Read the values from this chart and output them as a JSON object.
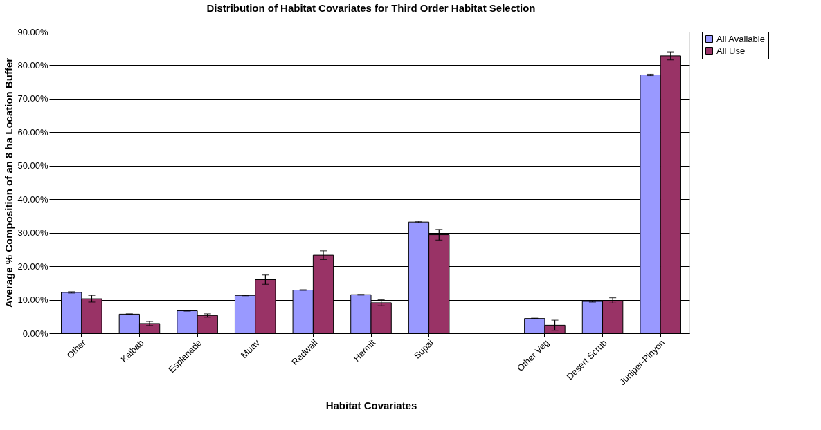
{
  "chart_data": {
    "type": "bar",
    "title": "Distribution of Habitat Covariates for Third Order Habitat Selection",
    "xlabel": "Habitat Covariates",
    "ylabel": "Average % Composition of an 8 ha Location Buffer",
    "categories": [
      "Other",
      "Kaibab",
      "Esplanade",
      "Muav",
      "Redwall",
      "Hermit",
      "Supai",
      null,
      "Other Veg",
      "Desert Scrub",
      "Juniper-Pinyon"
    ],
    "series": [
      {
        "name": "All Available",
        "color": "#9999ff",
        "values": [
          12.2,
          5.7,
          6.7,
          11.3,
          12.9,
          11.5,
          33.2,
          null,
          4.4,
          9.5,
          77.1
        ],
        "errors": [
          0.2,
          0.1,
          0.1,
          0.1,
          0.1,
          0.1,
          0.2,
          null,
          0.1,
          0.2,
          0.2
        ]
      },
      {
        "name": "All Use",
        "color": "#993366",
        "values": [
          10.3,
          2.9,
          5.3,
          16.0,
          23.3,
          9.1,
          29.4,
          null,
          2.4,
          9.8,
          82.8
        ],
        "errors": [
          1.0,
          0.6,
          0.5,
          1.4,
          1.3,
          0.9,
          1.6,
          null,
          1.5,
          0.8,
          1.2
        ]
      }
    ],
    "ylim": [
      0,
      90
    ],
    "yticks": [
      {
        "value": 0,
        "label": "0.00%"
      },
      {
        "value": 10,
        "label": "10.00%"
      },
      {
        "value": 20,
        "label": "20.00%"
      },
      {
        "value": 30,
        "label": "30.00%"
      },
      {
        "value": 40,
        "label": "40.00%"
      },
      {
        "value": 50,
        "label": "50.00%"
      },
      {
        "value": 60,
        "label": "60.00%"
      },
      {
        "value": 70,
        "label": "70.00%"
      },
      {
        "value": 80,
        "label": "80.00%"
      },
      {
        "value": 90,
        "label": "90.00%"
      }
    ],
    "grid": "y",
    "legend": "right"
  }
}
